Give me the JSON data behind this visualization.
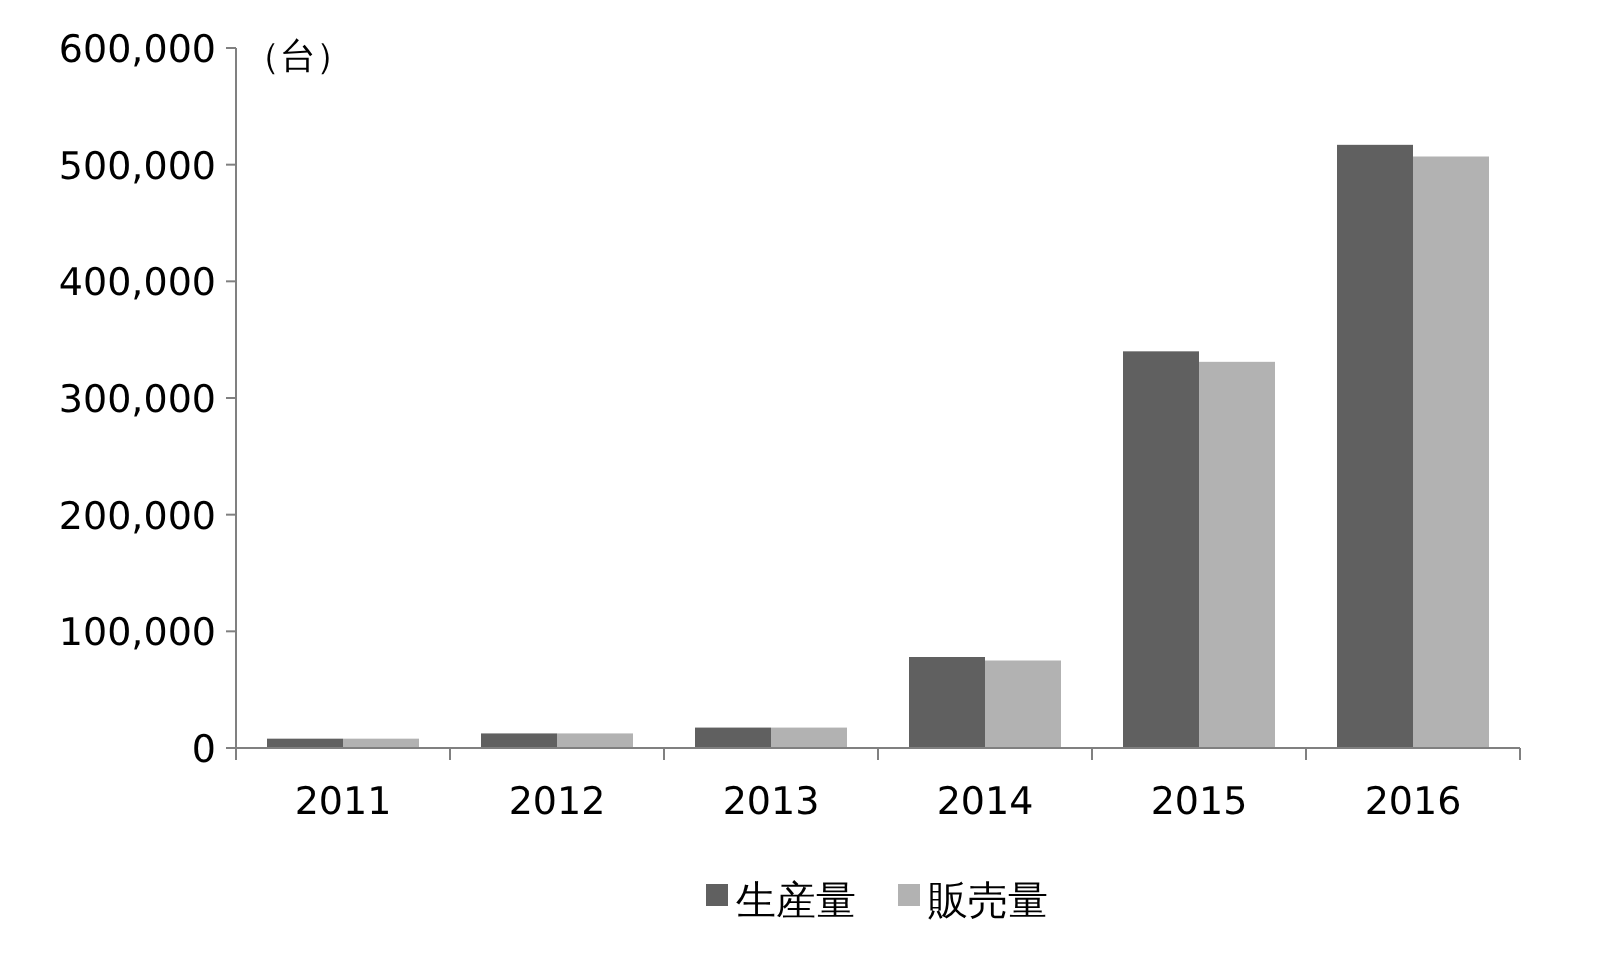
{
  "chart_data": {
    "type": "bar",
    "ylabel": "（台）",
    "categories": [
      "2011",
      "2012",
      "2013",
      "2014",
      "2015",
      "2016"
    ],
    "series": [
      {
        "name": "生産量",
        "color": "#606060",
        "values": [
          8000,
          12500,
          17500,
          78000,
          340000,
          517000
        ]
      },
      {
        "name": "販売量",
        "color": "#b2b2b2",
        "values": [
          8000,
          12500,
          17500,
          75000,
          331000,
          507000
        ]
      }
    ],
    "ylim": [
      0,
      600000
    ],
    "yticks": [
      0,
      {
        "value": 100000,
        "label": "100,000"
      },
      {
        "value": 200000,
        "label": "200,000"
      },
      {
        "value": 300000,
        "label": "300,000"
      },
      {
        "value": 400000,
        "label": "400,000"
      },
      {
        "value": 500000,
        "label": "500,000"
      },
      {
        "value": 600000,
        "label": "600,000"
      }
    ],
    "grid": false,
    "legend": "bottom"
  }
}
